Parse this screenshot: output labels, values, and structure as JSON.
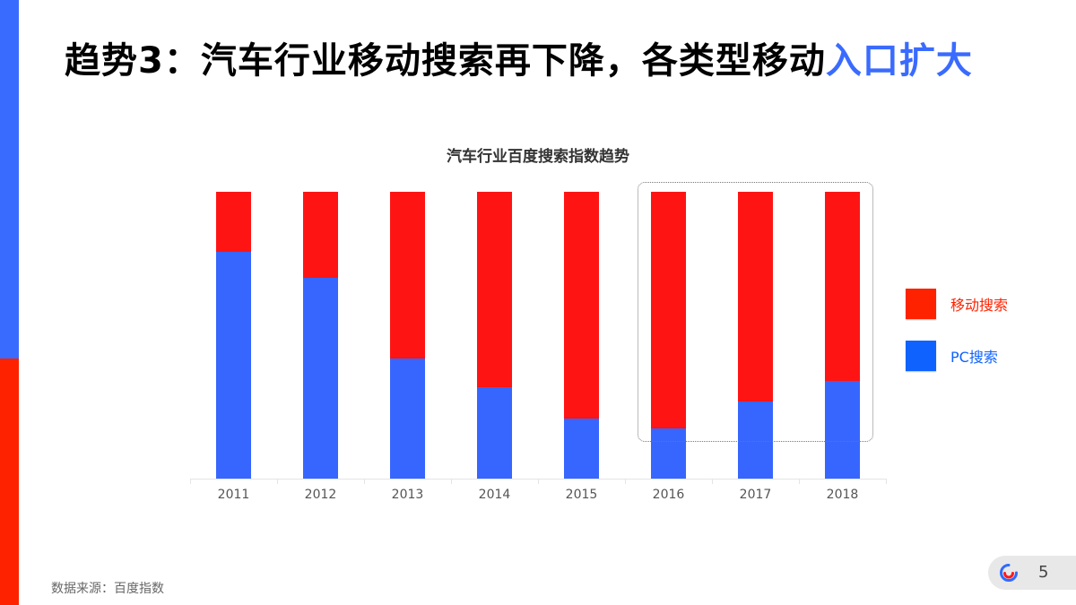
{
  "slide": {
    "title_prefix": "趋势3：汽车行业移动搜索再下降，各类型移动",
    "title_highlight": "入口扩大",
    "source": "数据来源：百度指数",
    "page_number": "5",
    "colors": {
      "accent_blue": "#3a6bff",
      "accent_red": "#ff2200"
    }
  },
  "chart_data": {
    "type": "bar",
    "stacked": true,
    "normalized": true,
    "title": "汽车行业百度搜索指数趋势",
    "xlabel": "",
    "ylabel": "",
    "categories": [
      "2011",
      "2012",
      "2013",
      "2014",
      "2015",
      "2016",
      "2017",
      "2018"
    ],
    "series": [
      {
        "name": "PC搜索",
        "color": "#3766ff",
        "values": [
          79,
          70,
          42,
          32,
          21,
          17.5,
          27,
          34
        ]
      },
      {
        "name": "移动搜索",
        "color": "#ff1414",
        "values": [
          21,
          30,
          58,
          68,
          79,
          82.5,
          73,
          66
        ]
      }
    ],
    "ylim": [
      0,
      100
    ],
    "grid": false,
    "legend": {
      "position": "right",
      "entries": [
        {
          "label": "移动搜索",
          "color": "#ff2200"
        },
        {
          "label": "PC搜索",
          "color": "#0f62fe"
        }
      ]
    },
    "annotations": [
      {
        "type": "dotted-box",
        "covers": [
          "2016",
          "2017",
          "2018"
        ]
      }
    ]
  }
}
